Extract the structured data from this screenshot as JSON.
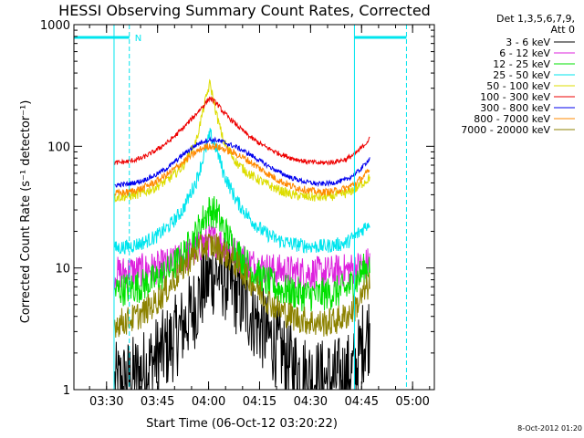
{
  "chart_data": {
    "type": "line",
    "title": "HESSI Observing Summary Count Rates, Corrected",
    "xlabel": "Start Time (06-Oct-12 03:20:22)",
    "ylabel": "Corrected Count Rate (s⁻¹ detector⁻¹)",
    "x_ticks": [
      "03:30",
      "03:45",
      "04:00",
      "04:15",
      "04:30",
      "04:45",
      "05:00"
    ],
    "x_tick_minutes": [
      9.6,
      24.6,
      39.6,
      54.6,
      69.6,
      84.6,
      99.6
    ],
    "x_range_minutes_from_start": [
      0,
      106
    ],
    "x_units": "minutes after 06-Oct-12 03:20:22",
    "y_scale": "log",
    "y_ticks": [
      1,
      10,
      100,
      1000
    ],
    "y_tick_labels": [
      "1",
      "10",
      "100",
      "1000"
    ],
    "ylim": [
      1,
      1000
    ],
    "legend_header": [
      "Det 1,3,5,6,7,9,",
      "Att 0"
    ],
    "legend_placement": "right, outside plot",
    "grid": false,
    "night_marker_label": "N",
    "data_window_minutes": [
      12.0,
      87.0
    ],
    "night_intervals_minutes": [
      [
        0.0,
        16.3
      ],
      [
        82.5,
        97.8
      ]
    ],
    "series": [
      {
        "name": "3 - 6 keV",
        "color": "#000000",
        "x": [
          12.0,
          16.0,
          20.0,
          24.0,
          28.0,
          32.0,
          36.0,
          38.0,
          40.0,
          42.0,
          44.0,
          48.0,
          52.0,
          56.0,
          60.0,
          64.0,
          68.0,
          72.0,
          76.0,
          80.0,
          83.0,
          85.0,
          87.0
        ],
        "values": [
          1.1,
          1.2,
          1.4,
          1.8,
          2.3,
          3.3,
          5.0,
          7.0,
          8.5,
          9.2,
          8.3,
          6.0,
          4.3,
          3.0,
          2.2,
          1.6,
          1.3,
          1.2,
          1.2,
          1.3,
          1.5,
          2.5,
          3.0
        ]
      },
      {
        "name": "6 - 12 keV",
        "color": "#dd22dd",
        "x": [
          12.0,
          16.0,
          20.0,
          24.0,
          28.0,
          32.0,
          36.0,
          38.0,
          40.0,
          42.0,
          44.0,
          48.0,
          52.0,
          56.0,
          60.0,
          64.0,
          68.0,
          72.0,
          76.0,
          80.0,
          83.0,
          85.0,
          87.0
        ],
        "values": [
          9.0,
          9.3,
          9.6,
          10.0,
          10.7,
          12.0,
          14.2,
          16.0,
          17.0,
          16.8,
          15.5,
          12.8,
          10.9,
          10.0,
          9.5,
          9.3,
          9.1,
          9.1,
          9.3,
          9.6,
          10.0,
          10.5,
          11.0
        ]
      },
      {
        "name": "12 - 25 keV",
        "color": "#00e000",
        "x": [
          12.0,
          16.0,
          20.0,
          24.0,
          28.0,
          32.0,
          36.0,
          38.0,
          40.0,
          42.0,
          44.0,
          48.0,
          52.0,
          56.0,
          60.0,
          64.0,
          68.0,
          72.0,
          76.0,
          80.0,
          83.0,
          85.0,
          87.0
        ],
        "values": [
          6.5,
          6.8,
          7.2,
          8.0,
          9.5,
          12.5,
          19.0,
          25.0,
          30.0,
          28.0,
          21.0,
          13.5,
          9.8,
          7.8,
          6.8,
          6.3,
          6.0,
          6.0,
          6.2,
          6.7,
          7.8,
          9.5,
          10.5
        ]
      },
      {
        "name": "25 - 50 keV",
        "color": "#00e5ee",
        "x": [
          12.0,
          16.0,
          20.0,
          24.0,
          28.0,
          32.0,
          36.0,
          38.0,
          40.0,
          42.0,
          44.0,
          48.0,
          52.0,
          56.0,
          60.0,
          64.0,
          68.0,
          72.0,
          76.0,
          80.0,
          83.0,
          85.0,
          87.0
        ],
        "values": [
          14.5,
          15.0,
          16.0,
          18.0,
          22.0,
          30.0,
          52.0,
          80.0,
          125.0,
          95.0,
          60.0,
          35.0,
          25.0,
          19.5,
          17.0,
          15.8,
          15.2,
          15.0,
          15.3,
          16.0,
          18.5,
          21.0,
          24.0
        ]
      },
      {
        "name": "50 - 100 keV",
        "color": "#dddd00",
        "x": [
          12.0,
          16.0,
          20.0,
          24.0,
          28.0,
          32.0,
          36.0,
          38.0,
          40.0,
          42.0,
          44.0,
          48.0,
          52.0,
          56.0,
          60.0,
          64.0,
          68.0,
          72.0,
          76.0,
          80.0,
          83.0,
          85.0,
          87.0
        ],
        "values": [
          38.0,
          39.0,
          41.0,
          46.0,
          54.0,
          68.0,
          110.0,
          200.0,
          330.0,
          180.0,
          110.0,
          72.0,
          58.0,
          50.0,
          44.0,
          40.0,
          38.5,
          38.0,
          39.0,
          41.0,
          45.0,
          50.0,
          55.0
        ]
      },
      {
        "name": "100 - 300 keV",
        "color": "#ee0000",
        "x": [
          12.0,
          16.0,
          20.0,
          24.0,
          28.0,
          32.0,
          36.0,
          38.0,
          40.0,
          42.0,
          44.0,
          48.0,
          52.0,
          56.0,
          60.0,
          64.0,
          68.0,
          72.0,
          76.0,
          80.0,
          83.0,
          85.0,
          87.0
        ],
        "values": [
          73.0,
          75.0,
          80.0,
          92.0,
          110.0,
          140.0,
          185.0,
          215.0,
          250.0,
          225.0,
          190.0,
          148.0,
          118.0,
          100.0,
          88.0,
          80.0,
          75.0,
          73.0,
          74.0,
          78.0,
          88.0,
          100.0,
          115.0
        ]
      },
      {
        "name": "300 - 800 keV",
        "color": "#0000ee",
        "x": [
          12.0,
          16.0,
          20.0,
          24.0,
          28.0,
          32.0,
          36.0,
          38.0,
          40.0,
          42.0,
          44.0,
          48.0,
          52.0,
          56.0,
          60.0,
          64.0,
          68.0,
          72.0,
          76.0,
          80.0,
          83.0,
          85.0,
          87.0
        ],
        "values": [
          48.0,
          49.0,
          52.0,
          58.0,
          68.0,
          85.0,
          103.0,
          110.0,
          113.0,
          112.0,
          108.0,
          98.0,
          85.0,
          72.0,
          62.0,
          55.0,
          51.0,
          49.0,
          50.0,
          53.0,
          60.0,
          68.0,
          80.0
        ]
      },
      {
        "name": "800 - 7000 keV",
        "color": "#ff8800",
        "x": [
          12.0,
          16.0,
          20.0,
          24.0,
          28.0,
          32.0,
          36.0,
          38.0,
          40.0,
          42.0,
          44.0,
          48.0,
          52.0,
          56.0,
          60.0,
          64.0,
          68.0,
          72.0,
          76.0,
          80.0,
          83.0,
          85.0,
          87.0
        ],
        "values": [
          41.0,
          42.0,
          45.0,
          51.0,
          60.0,
          74.0,
          90.0,
          97.0,
          101.0,
          99.0,
          95.0,
          86.0,
          74.0,
          62.0,
          53.0,
          47.0,
          44.0,
          42.0,
          42.5,
          45.0,
          50.0,
          56.0,
          63.0
        ]
      },
      {
        "name": "7000 - 20000 keV",
        "color": "#8c8200",
        "x": [
          12.0,
          16.0,
          20.0,
          24.0,
          28.0,
          32.0,
          36.0,
          38.0,
          40.0,
          42.0,
          44.0,
          48.0,
          52.0,
          56.0,
          60.0,
          64.0,
          68.0,
          72.0,
          76.0,
          80.0,
          83.0,
          85.0,
          87.0
        ],
        "values": [
          3.5,
          3.7,
          4.2,
          5.2,
          7.0,
          10.0,
          13.5,
          15.0,
          15.5,
          15.0,
          13.5,
          10.5,
          7.8,
          5.8,
          4.6,
          4.0,
          3.7,
          3.5,
          3.6,
          4.0,
          4.8,
          6.0,
          7.5
        ]
      }
    ]
  },
  "footer": {
    "timestamp": "8-Oct-2012 01:20"
  }
}
